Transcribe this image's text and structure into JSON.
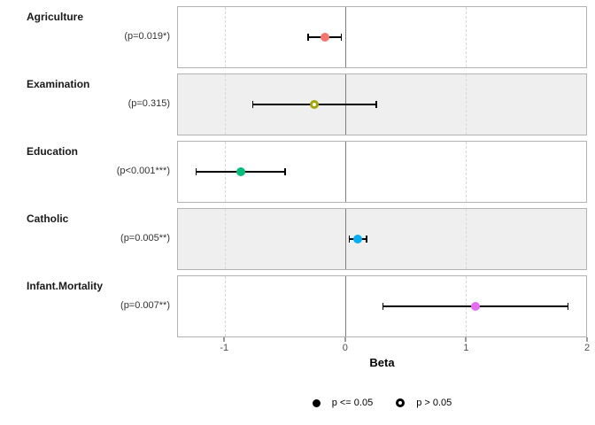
{
  "chart_data": {
    "type": "scatter",
    "variant": "forest-plot (regression coefficients with 95% CI)",
    "title": "",
    "xlabel": "Beta",
    "ylabel": "",
    "xlim": [
      -1.39,
      2.0
    ],
    "x_ticks": [
      -1,
      0,
      1,
      2
    ],
    "zero_line": 0,
    "grid": "dashed vertical gridlines at x ticks",
    "rows": [
      {
        "label": "Agriculture",
        "p_label": "(p=0.019*)",
        "estimate": -0.17,
        "ci": [
          -0.31,
          -0.03
        ],
        "color": "#F8766D",
        "significant": true
      },
      {
        "label": "Examination",
        "p_label": "(p=0.315)",
        "estimate": -0.26,
        "ci": [
          -0.77,
          0.26
        ],
        "color": "#A3A500",
        "significant": false
      },
      {
        "label": "Education",
        "p_label": "(p<0.001***)",
        "estimate": -0.87,
        "ci": [
          -1.24,
          -0.5
        ],
        "color": "#00BF7D",
        "significant": true
      },
      {
        "label": "Catholic",
        "p_label": "(p=0.005**)",
        "estimate": 0.1,
        "ci": [
          0.03,
          0.18
        ],
        "color": "#00B0F6",
        "significant": true
      },
      {
        "label": "Infant.Mortality",
        "p_label": "(p=0.007**)",
        "estimate": 1.08,
        "ci": [
          0.31,
          1.85
        ],
        "color": "#E76BF3",
        "significant": true
      }
    ],
    "legend": {
      "position": "bottom",
      "items": [
        {
          "marker": "filled-circle",
          "label": "p <= 0.05"
        },
        {
          "marker": "open-circle",
          "label": "p > 0.05"
        }
      ]
    }
  },
  "colors": {
    "panel_stripe": "#EFEFEF",
    "panel_border": "#B3B3B3",
    "zero_line": "#7F7F7F",
    "gridline": "#D9D9D9",
    "errorbar": "#000000",
    "axis_text": "#4D4D4D"
  }
}
